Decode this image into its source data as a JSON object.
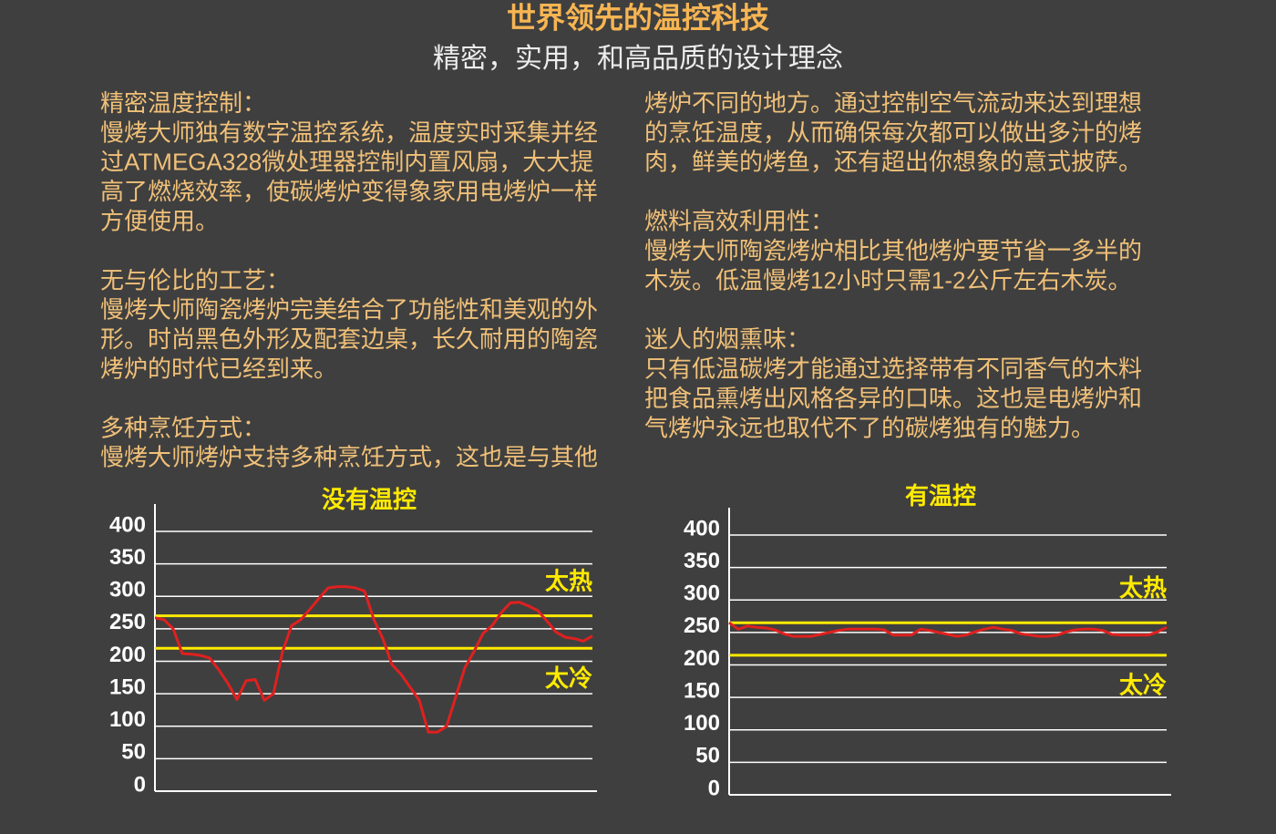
{
  "header": {
    "title": "世界领先的温控科技",
    "subtitle": "精密，实用，和高品质的设计理念"
  },
  "columns": [
    [
      {
        "heading": "精密温度控制：",
        "lines": [
          "慢烤大师独有数字温控系统，温度实时采集并经",
          "过ATMEGA328微处理器控制内置风扇，大大提",
          "高了燃烧效率，使碳烤炉变得象家用电烤炉一样",
          "方便使用。"
        ]
      },
      {
        "heading": "无与伦比的工艺：",
        "lines": [
          "慢烤大师陶瓷烤炉完美结合了功能性和美观的外",
          "形。时尚黑色外形及配套边桌，长久耐用的陶瓷",
          "烤炉的时代已经到来。"
        ]
      },
      {
        "heading": "多种烹饪方式：",
        "lines": [
          "慢烤大师烤炉支持多种烹饪方式，这也是与其他"
        ]
      }
    ],
    [
      {
        "lines": [
          "烤炉不同的地方。通过控制空气流动来达到理想",
          "的烹饪温度，从而确保每次都可以做出多汁的烤",
          "肉，鲜美的烤鱼，还有超出你想象的意式披萨。"
        ]
      },
      {
        "heading": "燃料高效利用性：",
        "lines": [
          "慢烤大师陶瓷烤炉相比其他烤炉要节省一多半的",
          "木炭。低温慢烤12小时只需1-2公斤左右木炭。"
        ]
      },
      {
        "heading": "迷人的烟熏味：",
        "lines": [
          "只有低温碳烤才能通过选择带有不同香气的木料",
          "把食品熏烤出风格各异的口味。这也是电烤炉和",
          "气烤炉永远也取代不了的碳烤独有的魅力。"
        ]
      }
    ]
  ],
  "chart_data": [
    {
      "type": "line",
      "title": "没有温控",
      "ylim": [
        0,
        400
      ],
      "yticks": [
        0,
        50,
        100,
        150,
        200,
        250,
        300,
        350,
        400
      ],
      "grid": true,
      "reference_lines": [
        {
          "value": 270,
          "label": "太热",
          "color": "#ffea00"
        },
        {
          "value": 220,
          "label": "太冷",
          "color": "#ffea00"
        }
      ],
      "series": [
        {
          "color": "#e0201f",
          "values": [
            267,
            264,
            250,
            212,
            211,
            209,
            205,
            187,
            166,
            141,
            170,
            172,
            140,
            150,
            215,
            255,
            264,
            280,
            297,
            313,
            315,
            315,
            313,
            308,
            265,
            235,
            195,
            180,
            160,
            140,
            91,
            91,
            100,
            145,
            190,
            215,
            243,
            255,
            275,
            290,
            291,
            285,
            278,
            262,
            245,
            237,
            235,
            231,
            239
          ]
        }
      ]
    },
    {
      "type": "line",
      "title": "有温控",
      "ylim": [
        0,
        400
      ],
      "yticks": [
        0,
        50,
        100,
        150,
        200,
        250,
        300,
        350,
        400
      ],
      "grid": true,
      "reference_lines": [
        {
          "value": 265,
          "label": "太热",
          "color": "#ffea00"
        },
        {
          "value": 215,
          "label": "太冷",
          "color": "#ffea00"
        }
      ],
      "series": [
        {
          "color": "#e0201f",
          "values": [
            265,
            255,
            260,
            258,
            257,
            254,
            248,
            244,
            244,
            244,
            247,
            250,
            253,
            255,
            255,
            255,
            255,
            254,
            246,
            246,
            246,
            255,
            253,
            250,
            247,
            244,
            246,
            251,
            255,
            258,
            255,
            253,
            248,
            246,
            244,
            244,
            246,
            251,
            254,
            255,
            255,
            253,
            247,
            246,
            246,
            246,
            246,
            251,
            258
          ]
        }
      ]
    }
  ]
}
